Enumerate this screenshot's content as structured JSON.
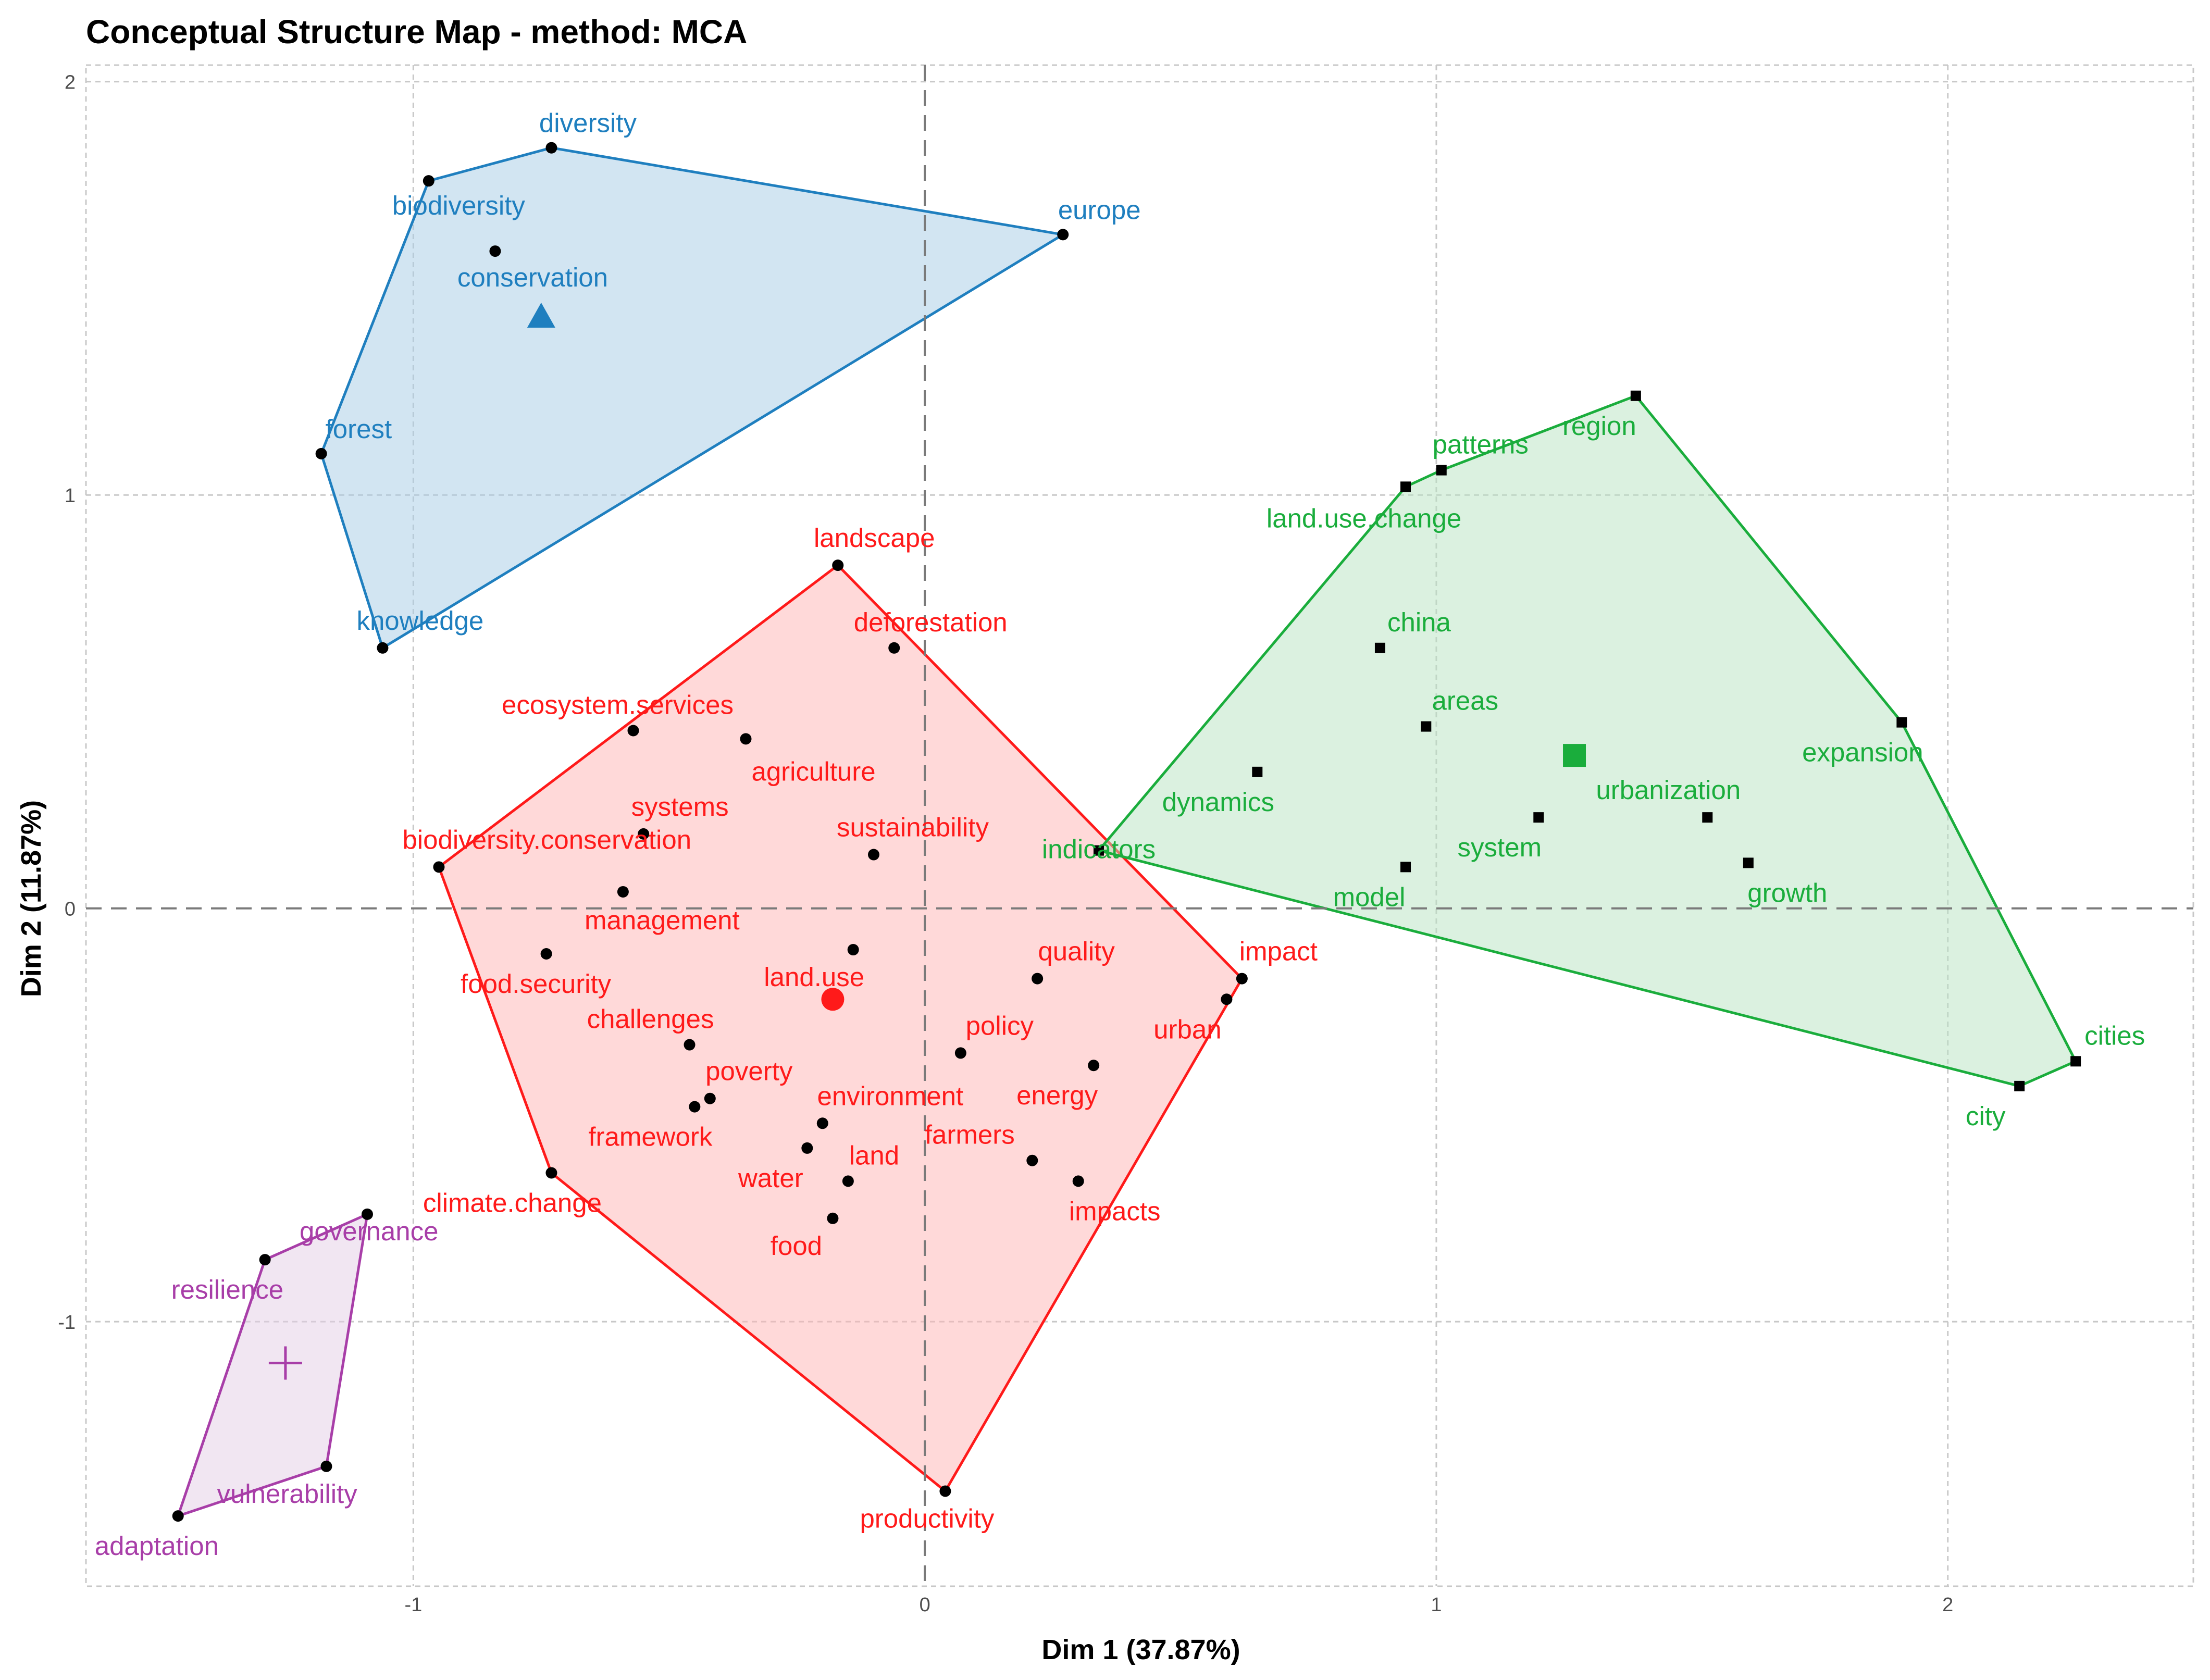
{
  "chart_data": {
    "type": "scatter",
    "title": "Conceptual Structure Map - method: MCA",
    "xlabel": "Dim 1 (37.87%)",
    "ylabel": "Dim 2 (11.87%)",
    "xlim": [
      -1.64,
      2.48
    ],
    "ylim": [
      -1.64,
      2.04
    ],
    "xticks": [
      -1,
      0,
      1,
      2
    ],
    "yticks": [
      -1,
      0,
      1,
      2
    ],
    "grid": true,
    "clusters": [
      {
        "name": "cluster-blue",
        "color": "#1f7fbf",
        "fill": "#a6cbe5",
        "centroid_marker": "triangle",
        "centroid": [
          -0.75,
          1.43
        ],
        "hull": [
          "diversity",
          "europe",
          "knowledge",
          "forest",
          "biodiversity"
        ],
        "points": [
          {
            "label": "diversity",
            "x": -0.73,
            "y": 1.84
          },
          {
            "label": "biodiversity",
            "x": -0.97,
            "y": 1.76
          },
          {
            "label": "conservation",
            "x": -0.84,
            "y": 1.59
          },
          {
            "label": "europe",
            "x": 0.27,
            "y": 1.63
          },
          {
            "label": "forest",
            "x": -1.18,
            "y": 1.1
          },
          {
            "label": "knowledge",
            "x": -1.06,
            "y": 0.63
          }
        ]
      },
      {
        "name": "cluster-red",
        "color": "#ff1a1a",
        "fill": "#ffb3b3",
        "centroid_marker": "circle",
        "centroid": [
          -0.18,
          -0.22
        ],
        "hull": [
          "landscape",
          "impact",
          "productivity",
          "climate.change",
          "biodiversity.conservation"
        ],
        "points": [
          {
            "label": "landscape",
            "x": -0.17,
            "y": 0.83
          },
          {
            "label": "deforestation",
            "x": -0.06,
            "y": 0.63
          },
          {
            "label": "ecosystem.services",
            "x": -0.57,
            "y": 0.43
          },
          {
            "label": "agriculture",
            "x": -0.35,
            "y": 0.41
          },
          {
            "label": "systems",
            "x": -0.55,
            "y": 0.18
          },
          {
            "label": "sustainability",
            "x": -0.1,
            "y": 0.13
          },
          {
            "label": "biodiversity.conservation",
            "x": -0.95,
            "y": 0.1
          },
          {
            "label": "management",
            "x": -0.59,
            "y": 0.04
          },
          {
            "label": "food.security",
            "x": -0.74,
            "y": -0.11
          },
          {
            "label": "land.use",
            "x": -0.14,
            "y": -0.1
          },
          {
            "label": "quality",
            "x": 0.22,
            "y": -0.17
          },
          {
            "label": "impact",
            "x": 0.62,
            "y": -0.17
          },
          {
            "label": "urban",
            "x": 0.59,
            "y": -0.22
          },
          {
            "label": "challenges",
            "x": -0.46,
            "y": -0.33
          },
          {
            "label": "policy",
            "x": 0.07,
            "y": -0.35
          },
          {
            "label": "energy",
            "x": 0.33,
            "y": -0.38
          },
          {
            "label": "poverty",
            "x": -0.42,
            "y": -0.46
          },
          {
            "label": "framework",
            "x": -0.45,
            "y": -0.48
          },
          {
            "label": "environment",
            "x": -0.2,
            "y": -0.52
          },
          {
            "label": "water",
            "x": -0.23,
            "y": -0.58
          },
          {
            "label": "farmers",
            "x": 0.21,
            "y": -0.61
          },
          {
            "label": "land",
            "x": -0.15,
            "y": -0.66
          },
          {
            "label": "impacts",
            "x": 0.3,
            "y": -0.66
          },
          {
            "label": "climate.change",
            "x": -0.73,
            "y": -0.64
          },
          {
            "label": "food",
            "x": -0.18,
            "y": -0.75
          },
          {
            "label": "productivity",
            "x": 0.04,
            "y": -1.41
          }
        ]
      },
      {
        "name": "cluster-green",
        "color": "#1aad3c",
        "fill": "#b8e4c2",
        "centroid_marker": "square",
        "centroid": [
          1.27,
          0.37
        ],
        "hull": [
          "region",
          "expansion",
          "cities",
          "city",
          "indicators",
          "land.use.change",
          "patterns"
        ],
        "points": [
          {
            "label": "region",
            "x": 1.39,
            "y": 1.24
          },
          {
            "label": "patterns",
            "x": 1.01,
            "y": 1.06
          },
          {
            "label": "land.use.change",
            "x": 0.94,
            "y": 1.02
          },
          {
            "label": "china",
            "x": 0.89,
            "y": 0.63
          },
          {
            "label": "areas",
            "x": 0.98,
            "y": 0.44
          },
          {
            "label": "expansion",
            "x": 1.91,
            "y": 0.45
          },
          {
            "label": "dynamics",
            "x": 0.65,
            "y": 0.33
          },
          {
            "label": "urbanization",
            "x": 1.53,
            "y": 0.22
          },
          {
            "label": "system",
            "x": 1.2,
            "y": 0.22
          },
          {
            "label": "indicators",
            "x": 0.34,
            "y": 0.14
          },
          {
            "label": "model",
            "x": 0.94,
            "y": 0.1
          },
          {
            "label": "growth",
            "x": 1.61,
            "y": 0.11
          },
          {
            "label": "cities",
            "x": 2.25,
            "y": -0.37
          },
          {
            "label": "city",
            "x": 2.14,
            "y": -0.43
          }
        ]
      },
      {
        "name": "cluster-purple",
        "color": "#a83ea8",
        "fill": "#e4cde6",
        "centroid_marker": "plus",
        "centroid": [
          -1.25,
          -1.1
        ],
        "hull": [
          "vulnerability",
          "adaptation",
          "resilience",
          "governance"
        ],
        "points": [
          {
            "label": "governance",
            "x": -1.09,
            "y": -0.74
          },
          {
            "label": "resilience",
            "x": -1.29,
            "y": -0.85
          },
          {
            "label": "vulnerability",
            "x": -1.17,
            "y": -1.35
          },
          {
            "label": "adaptation",
            "x": -1.46,
            "y": -1.47
          }
        ]
      }
    ]
  }
}
